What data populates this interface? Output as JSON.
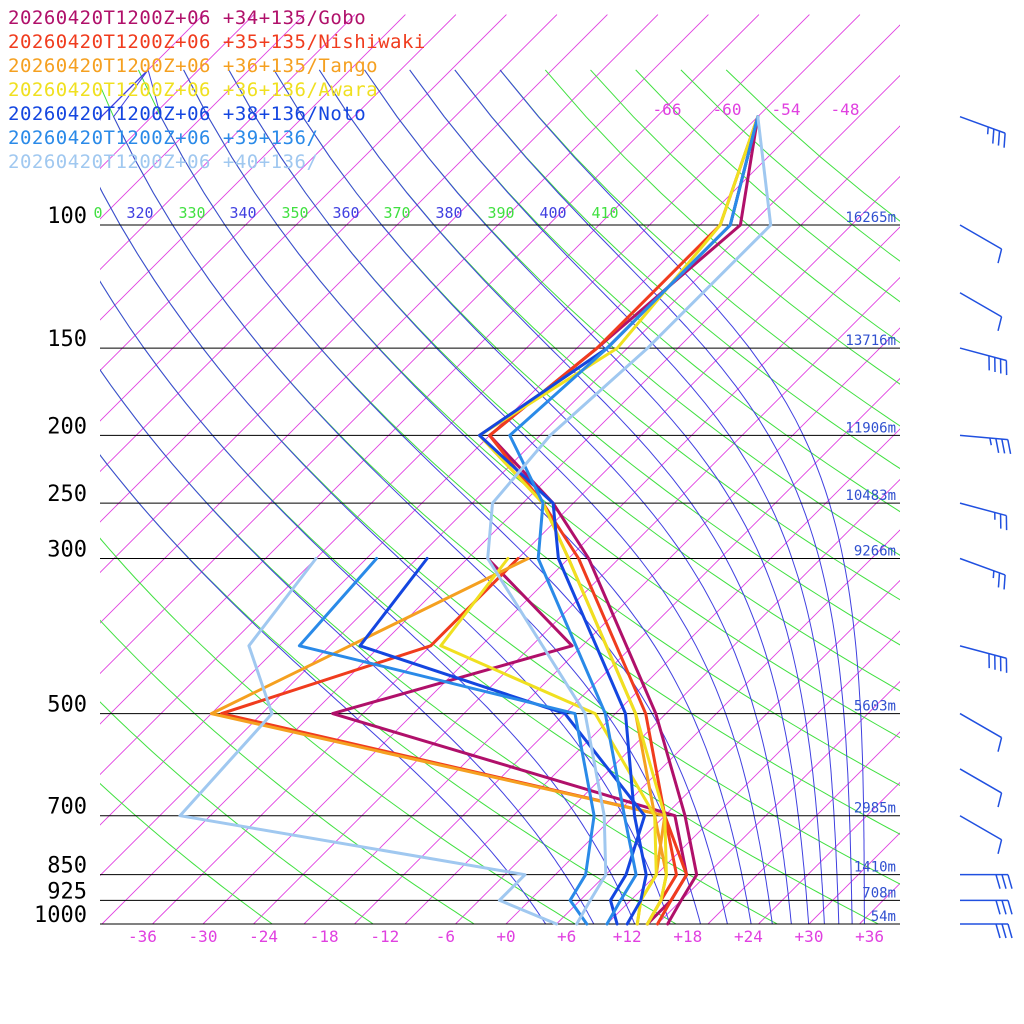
{
  "chart_data": {
    "type": "skew-t",
    "legend": [
      {
        "text": "20260420T1200Z+06 +34+135/Gobo",
        "color": "#b0106a"
      },
      {
        "text": "20260420T1200Z+06 +35+135/Nishiwaki",
        "color": "#f03c1e"
      },
      {
        "text": "20260420T1200Z+06 +36+135/Tango",
        "color": "#f5a020"
      },
      {
        "text": "20260420T1200Z+06 +36+136/Awara",
        "color": "#f0e020"
      },
      {
        "text": "20260420T1200Z+06 +38+136/Noto",
        "color": "#1446e0"
      },
      {
        "text": "20260420T1200Z+06 +39+136/",
        "color": "#2a8ae8"
      },
      {
        "text": "20260420T1200Z+06 +40+136/",
        "color": "#a0c8f0"
      }
    ],
    "pressure_levels": [
      {
        "p": 100,
        "label": "100",
        "height": "16265m"
      },
      {
        "p": 150,
        "label": "150",
        "height": "13716m"
      },
      {
        "p": 200,
        "label": "200",
        "height": "11906m"
      },
      {
        "p": 250,
        "label": "250",
        "height": "10483m"
      },
      {
        "p": 300,
        "label": "300",
        "height": "9266m"
      },
      {
        "p": 500,
        "label": "500",
        "height": "5603m"
      },
      {
        "p": 700,
        "label": "700",
        "height": "2985m"
      },
      {
        "p": 850,
        "label": "850",
        "height": "1410m"
      },
      {
        "p": 925,
        "label": "925",
        "height": "708m"
      },
      {
        "p": 1000,
        "label": "1000",
        "height": "54m"
      }
    ],
    "x_ticks": [
      "-36",
      "-30",
      "-24",
      "-18",
      "-12",
      "-6",
      "+0",
      "+6",
      "+12",
      "+18",
      "+24",
      "+30",
      "+36"
    ],
    "theta_labels": [
      "0",
      "320",
      "330",
      "340",
      "350",
      "360",
      "370",
      "380",
      "390",
      "400",
      "410"
    ],
    "upper_temp_labels": [
      "-66",
      "-60",
      "-54",
      "-48"
    ],
    "series": [
      {
        "name": "Gobo",
        "color": "#b0106a",
        "temperature": [
          [
            70,
            -55
          ],
          [
            100,
            -46
          ],
          [
            150,
            -48
          ],
          [
            200,
            -50
          ],
          [
            250,
            -37
          ],
          [
            300,
            -28
          ],
          [
            500,
            -6
          ],
          [
            700,
            7
          ],
          [
            850,
            14
          ],
          [
            925,
            15
          ],
          [
            1000,
            16
          ]
        ],
        "dewpoint": [
          [
            300,
            -38
          ],
          [
            400,
            -21
          ],
          [
            500,
            -38
          ],
          [
            700,
            6
          ],
          [
            850,
            13
          ],
          [
            925,
            14
          ],
          [
            1000,
            14
          ]
        ]
      },
      {
        "name": "Nishiwaki",
        "color": "#f03c1e",
        "temperature": [
          [
            70,
            -55
          ],
          [
            100,
            -48
          ],
          [
            150,
            -48
          ],
          [
            200,
            -50
          ],
          [
            250,
            -38
          ],
          [
            300,
            -29
          ],
          [
            500,
            -7
          ],
          [
            700,
            5
          ],
          [
            850,
            13
          ],
          [
            925,
            14
          ],
          [
            1000,
            15
          ]
        ],
        "dewpoint": [
          [
            300,
            -35
          ],
          [
            400,
            -35
          ],
          [
            500,
            -49
          ],
          [
            700,
            5
          ],
          [
            850,
            12
          ],
          [
            925,
            13
          ],
          [
            1000,
            14
          ]
        ]
      },
      {
        "name": "Tango",
        "color": "#f5a020",
        "temperature": [
          [
            70,
            -55
          ],
          [
            100,
            -47
          ],
          [
            150,
            -47
          ],
          [
            200,
            -51
          ],
          [
            250,
            -38
          ],
          [
            300,
            -30
          ],
          [
            500,
            -8
          ],
          [
            700,
            4
          ],
          [
            850,
            11
          ],
          [
            925,
            13
          ],
          [
            1000,
            14
          ]
        ],
        "dewpoint": [
          [
            300,
            -34
          ],
          [
            400,
            -43
          ],
          [
            500,
            -50
          ],
          [
            700,
            5
          ],
          [
            850,
            10
          ],
          [
            925,
            11
          ],
          [
            1000,
            13
          ]
        ]
      },
      {
        "name": "Awara",
        "color": "#f0e020",
        "temperature": [
          [
            70,
            -55
          ],
          [
            100,
            -48
          ],
          [
            150,
            -46
          ],
          [
            200,
            -51
          ],
          [
            250,
            -38
          ],
          [
            300,
            -30
          ],
          [
            500,
            -8
          ],
          [
            700,
            5
          ],
          [
            850,
            11
          ],
          [
            925,
            13
          ],
          [
            1000,
            14
          ]
        ],
        "dewpoint": [
          [
            300,
            -36
          ],
          [
            400,
            -34
          ],
          [
            500,
            -12
          ],
          [
            700,
            4
          ],
          [
            850,
            10
          ],
          [
            925,
            11
          ],
          [
            1000,
            13
          ]
        ]
      },
      {
        "name": "Noto",
        "color": "#1446e0",
        "temperature": [
          [
            70,
            -55
          ],
          [
            100,
            -47
          ],
          [
            150,
            -47
          ],
          [
            200,
            -51
          ],
          [
            250,
            -37
          ],
          [
            300,
            -31
          ],
          [
            500,
            -9
          ],
          [
            700,
            2
          ],
          [
            850,
            9
          ],
          [
            925,
            11
          ],
          [
            1000,
            12
          ]
        ],
        "dewpoint": [
          [
            300,
            -44
          ],
          [
            400,
            -42
          ],
          [
            500,
            -15
          ],
          [
            700,
            3
          ],
          [
            850,
            7
          ],
          [
            925,
            8
          ],
          [
            1000,
            11
          ]
        ]
      },
      {
        "name": "Point 39+136",
        "color": "#2a8ae8",
        "temperature": [
          [
            70,
            -55
          ],
          [
            100,
            -47
          ],
          [
            150,
            -47
          ],
          [
            200,
            -48
          ],
          [
            250,
            -38
          ],
          [
            300,
            -33
          ],
          [
            500,
            -11
          ],
          [
            700,
            1
          ],
          [
            850,
            8
          ],
          [
            925,
            9
          ],
          [
            1000,
            10
          ]
        ],
        "dewpoint": [
          [
            300,
            -49
          ],
          [
            400,
            -48
          ],
          [
            500,
            -14
          ],
          [
            700,
            -2
          ],
          [
            850,
            3
          ],
          [
            925,
            4
          ],
          [
            1000,
            8
          ]
        ]
      },
      {
        "name": "Point 40+136",
        "color": "#a0c8f0",
        "temperature": [
          [
            70,
            -55
          ],
          [
            100,
            -43
          ],
          [
            150,
            -43
          ],
          [
            200,
            -44
          ],
          [
            250,
            -43
          ],
          [
            300,
            -38
          ],
          [
            500,
            -13
          ],
          [
            700,
            -1
          ],
          [
            850,
            5
          ],
          [
            925,
            6
          ],
          [
            1000,
            7
          ]
        ],
        "dewpoint": [
          [
            300,
            -55
          ],
          [
            400,
            -53
          ],
          [
            500,
            -44
          ],
          [
            700,
            -43
          ],
          [
            850,
            -3
          ],
          [
            925,
            -3
          ],
          [
            1000,
            5
          ]
        ]
      }
    ],
    "winds": [
      {
        "p": 70,
        "dir": 290,
        "kt": 35
      },
      {
        "p": 100,
        "dir": 300,
        "kt": 10
      },
      {
        "p": 125,
        "dir": 300,
        "kt": 10
      },
      {
        "p": 150,
        "dir": 285,
        "kt": 40
      },
      {
        "p": 200,
        "dir": 275,
        "kt": 35
      },
      {
        "p": 250,
        "dir": 285,
        "kt": 25
      },
      {
        "p": 300,
        "dir": 290,
        "kt": 25
      },
      {
        "p": 400,
        "dir": 285,
        "kt": 40
      },
      {
        "p": 500,
        "dir": 300,
        "kt": 10
      },
      {
        "p": 600,
        "dir": 300,
        "kt": 10
      },
      {
        "p": 700,
        "dir": 300,
        "kt": 10
      },
      {
        "p": 850,
        "dir": 270,
        "kt": 30
      },
      {
        "p": 925,
        "dir": 270,
        "kt": 30
      },
      {
        "p": 1000,
        "dir": 270,
        "kt": 30
      }
    ],
    "colors": {
      "isobar": "#000000",
      "isotherm": "#e040e0",
      "dry_adiabat": "#40e040",
      "moist_adiabat": "#4040e0",
      "label_blue": "#3050d0",
      "wind_barb": "#2050e0",
      "tick_label": "#e040e0"
    }
  }
}
